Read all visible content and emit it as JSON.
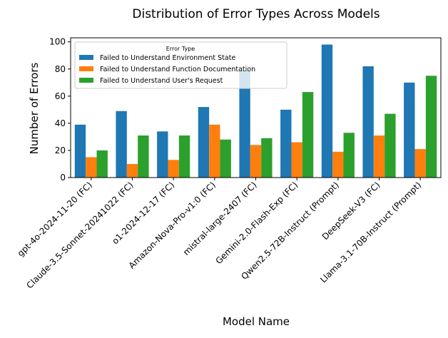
{
  "chart_data": {
    "type": "bar",
    "title": "Distribution of Error Types Across Models",
    "xlabel": "Model Name",
    "ylabel": "Number of Errors",
    "ylim": [
      0,
      103
    ],
    "yticks": [
      0,
      20,
      40,
      60,
      80,
      100
    ],
    "grid": false,
    "legend": {
      "title": "Error Type",
      "placement": "top-left"
    },
    "categories": [
      "gpt-4o-2024-11-20 (FC)",
      "Claude-3.5-Sonnet-20241022 (FC)",
      "o1-2024-12-17 (FC)",
      "Amazon-Nova-Pro-v1:0 (FC)",
      "mistral-large-2407 (FC)",
      "Gemini-2.0-Flash-Exp (FC)",
      "Qwen2.5-72B-Instruct (Prompt)",
      "DeepSeek-V3 (FC)",
      "Llama-3.1-70B-Instruct (Prompt)"
    ],
    "series": [
      {
        "name": "Failed to Understand Environment State",
        "color": "#1f77b4",
        "values": [
          39,
          49,
          34,
          52,
          79,
          50,
          98,
          82,
          70
        ]
      },
      {
        "name": "Failed to Understand Function Documentation",
        "color": "#ff7f0e",
        "values": [
          15,
          10,
          13,
          39,
          24,
          26,
          19,
          31,
          21
        ]
      },
      {
        "name": "Failed to Understand User's Request",
        "color": "#2ca02c",
        "values": [
          20,
          31,
          31,
          28,
          29,
          63,
          33,
          47,
          75
        ]
      }
    ]
  }
}
